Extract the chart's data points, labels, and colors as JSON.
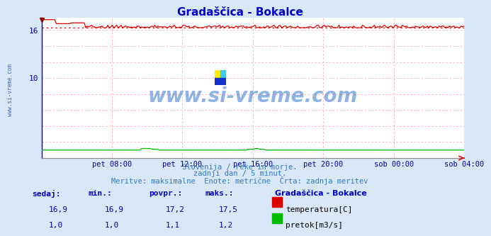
{
  "title": "Gradaščica - Bokalce",
  "bg_color": "#d8e8f8",
  "plot_bg_color": "#ffffff",
  "grid_color": "#ffaaaa",
  "grid_dotted_color": "#ddaaaa",
  "title_color": "#0000cc",
  "axis_label_color": "#0000aa",
  "n_points": 288,
  "temp_values_approx": 16.9,
  "temp_min": 16.9,
  "temp_max": 17.5,
  "temp_avg": 17.2,
  "temp_avg_line": 16.3,
  "flow_min": 1.0,
  "flow_max": 1.2,
  "flow_avg": 1.1,
  "ylim_min": 0,
  "ylim_max": 17.5,
  "ytick_vals": [
    10,
    16
  ],
  "xtick_labels": [
    "pet 08:00",
    "pet 12:00",
    "pet 16:00",
    "pet 20:00",
    "sob 00:00",
    "sob 04:00"
  ],
  "temp_color": "#dd0000",
  "flow_color": "#00bb00",
  "watermark_text": "www.si-vreme.com",
  "watermark_color": "#3377cc",
  "subtitle1": "Slovenija / reke in morje.",
  "subtitle2": "zadnji dan / 5 minut.",
  "subtitle3": "Meritve: maksimalne  Enote: metrične  Črta: zadnja meritev",
  "subtitle_color": "#3377cc",
  "legend_title": "Gradaščica - Bokalce",
  "legend_title_color": "#0000cc",
  "table_headers": [
    "sedaj:",
    "min.:",
    "povpr.:",
    "maks.:"
  ],
  "table_header_color": "#0000cc",
  "table_temp": [
    "16,9",
    "16,9",
    "17,2",
    "17,5"
  ],
  "table_flow": [
    "1,0",
    "1,0",
    "1,1",
    "1,2"
  ],
  "table_value_color": "#0000aa",
  "left_label": "www.si-vreme.com",
  "left_label_color": "#4466bb",
  "logo_yellow": "#ffee00",
  "logo_cyan": "#44ccee",
  "logo_blue": "#1133cc"
}
